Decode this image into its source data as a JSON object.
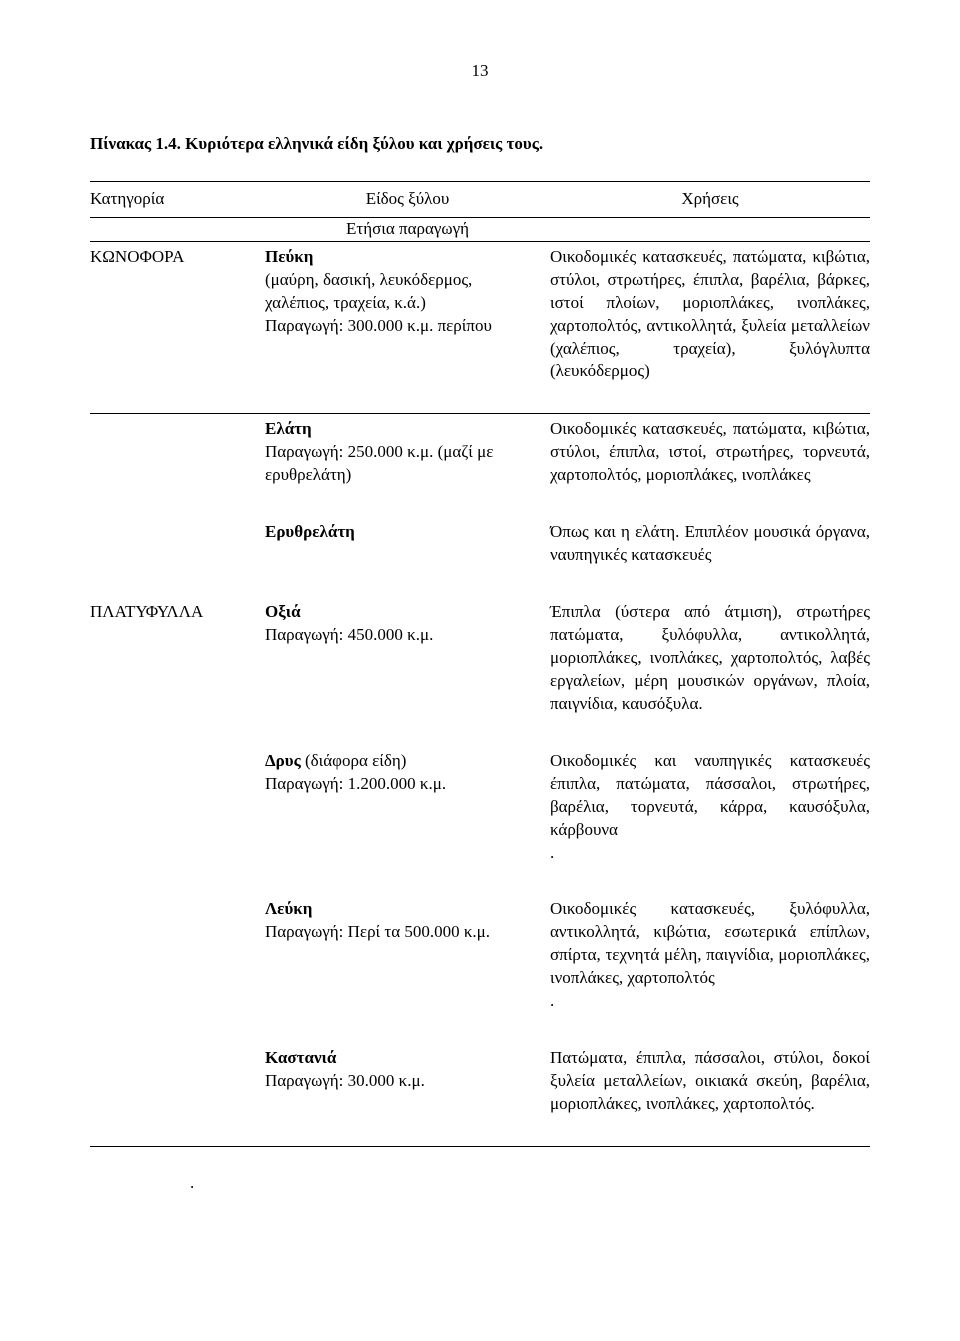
{
  "page_number": "13",
  "table_title": "Πίνακας 1.4. Κυριότερα ελληνικά είδη ξύλου και χρήσεις τους.",
  "headers": {
    "category": "Κατηγορία",
    "species": "Είδος ξύλου",
    "subheader": "Ετήσια παραγωγή",
    "uses": "Χρήσεις"
  },
  "rows": [
    {
      "category": "ΚΩΝΟΦΟΡΑ",
      "species_name": "Πεύκη",
      "species_detail": "(μαύρη, δασική, λευκόδερμος, χαλέπιος, τραχεία, κ.ά.)\nΠαραγωγή: 300.000 κ.μ. περίπου",
      "uses": "Οικοδομικές κατασκευές, πατώματα, κιβώτια, στύλοι, στρωτήρες, έπιπλα, βαρέλια, βάρκες, ιστοί πλοίων, μοριοπλάκες, ινοπλάκες, χαρτοπολτός, αντικολλητά, ξυλεία μεταλλείων (χαλέπιος, τραχεία), ξυλόγλυπτα (λευκόδερμος)",
      "first": true
    },
    {
      "category": "",
      "species_name": "Ελάτη",
      "species_detail": "Παραγωγή: 250.000 κ.μ. (μαζί με ερυθρελάτη)",
      "uses": "Οικοδομικές κατασκευές, πατώματα, κιβώτια, στύλοι, έπιπλα, ιστοί, στρωτήρες, τορνευτά, χαρτοπολτός, μοριοπλάκες, ινοπλάκες"
    },
    {
      "category": "",
      "species_name": "Ερυθρελάτη",
      "species_detail": "",
      "uses": "Όπως και η ελάτη. Επιπλέον μουσικά όργανα, ναυπηγικές κατασκευές"
    },
    {
      "category": "ΠΛΑΤΥΦΥΛΛΑ",
      "species_name": "Οξιά",
      "species_detail": "Παραγωγή: 450.000 κ.μ.",
      "uses": "Έπιπλα (ύστερα από άτμιση), στρωτήρες πατώματα, ξυλόφυλλα, αντικολλητά, μοριοπλάκες, ινοπλάκες, χαρτοπολτός, λαβές εργαλείων, μέρη μουσικών οργάνων, πλοία, παιγνίδια, καυσόξυλα."
    },
    {
      "category": "",
      "species_name": "Δρυς",
      "species_extra": " (διάφορα είδη)",
      "species_detail": "Παραγωγή: 1.200.000 κ.μ.",
      "uses": "Οικοδομικές και ναυπηγικές κατασκευές έπιπλα, πατώματα, πάσσαλοι, στρωτήρες, βαρέλια, τορνευτά, κάρρα, καυσόξυλα, κάρβουνα\n."
    },
    {
      "category": "",
      "species_name": "Λεύκη",
      "species_detail": "Παραγωγή: Περί τα 500.000 κ.μ.",
      "uses": "Οικοδομικές κατασκευές, ξυλόφυλλα, αντικολλητά, κιβώτια, εσωτερικά επίπλων, σπίρτα, τεχνητά μέλη, παιγνίδια, μοριοπλάκες, ινοπλάκες, χαρτοπολτός\n."
    },
    {
      "category": "",
      "species_name": "Καστανιά",
      "species_detail": "Παραγωγή: 30.000 κ.μ.",
      "uses": "Πατώματα, έπιπλα, πάσσαλοι, στύλοι, δοκοί ξυλεία μεταλλείων, οικιακά σκεύη, βαρέλια, μοριοπλάκες, ινοπλάκες, χαρτοπολτός.",
      "final": true
    }
  ],
  "footer_dot": "."
}
